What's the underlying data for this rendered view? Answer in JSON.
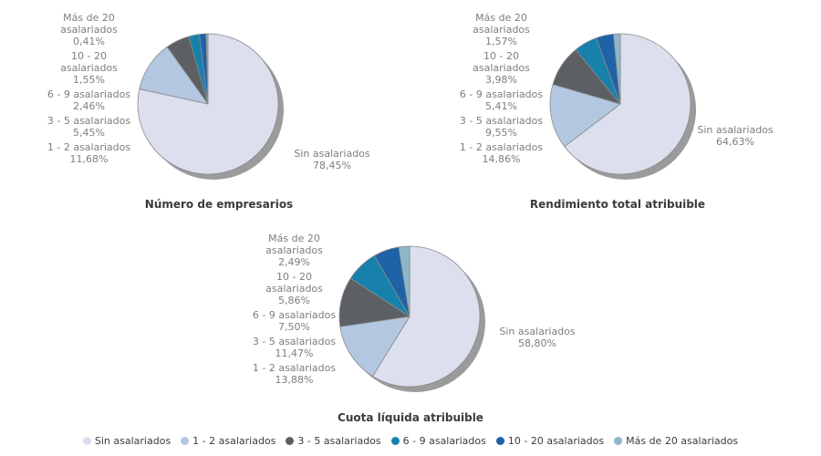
{
  "page": {
    "background_color": "#ffffff",
    "label_text_color": "#7e7e7e",
    "title_text_color": "#3b3b3b",
    "pie_shadow_color": "#9b9b9b",
    "slice_stroke_color": "#8a8a8a"
  },
  "legend": {
    "position": "bottom-center",
    "items": [
      {
        "label": "Sin asalariados",
        "color": "#dbdfee"
      },
      {
        "label": "1 - 2 asalariados",
        "color": "#b3c7e1"
      },
      {
        "label": "3 - 5 asalariados",
        "color": "#5c6064"
      },
      {
        "label": "6 - 9 asalariados",
        "color": "#1781ab"
      },
      {
        "label": "10 - 20 asalariados",
        "color": "#2062a7"
      },
      {
        "label": "Más de 20 asalariados",
        "color": "#8cb7c9"
      }
    ]
  },
  "chart_data": [
    {
      "type": "pie",
      "title": "Número de empresarios",
      "start_angle_deg": 0,
      "direction": "clockwise",
      "slices": [
        {
          "label": "Sin asalariados",
          "label_lines": [
            "Sin asalariados"
          ],
          "value": 78.45,
          "percent_label": "78,45%",
          "color": "#dbdfee",
          "label_side": "right"
        },
        {
          "label": "1 - 2 asalariados",
          "label_lines": [
            "1 - 2 asalariados"
          ],
          "value": 11.68,
          "percent_label": "11,68%",
          "color": "#b3c7e1",
          "label_side": "left"
        },
        {
          "label": "3 - 5 asalariados",
          "label_lines": [
            "3 - 5 asalariados"
          ],
          "value": 5.45,
          "percent_label": "5,45%",
          "color": "#5c6064",
          "label_side": "left"
        },
        {
          "label": "6 - 9 asalariados",
          "label_lines": [
            "6 - 9 asalariados"
          ],
          "value": 2.46,
          "percent_label": "2,46%",
          "color": "#1781ab",
          "label_side": "left"
        },
        {
          "label": "10 - 20 asalariados",
          "label_lines": [
            "10 - 20",
            "asalariados"
          ],
          "value": 1.55,
          "percent_label": "1,55%",
          "color": "#2062a7",
          "label_side": "left"
        },
        {
          "label": "Más de 20 asalariados",
          "label_lines": [
            "Más de 20",
            "asalariados"
          ],
          "value": 0.41,
          "percent_label": "0,41%",
          "color": "#8cb7c9",
          "label_side": "left"
        }
      ]
    },
    {
      "type": "pie",
      "title": "Rendimiento total atribuible",
      "start_angle_deg": 0,
      "direction": "clockwise",
      "slices": [
        {
          "label": "Sin asalariados",
          "label_lines": [
            "Sin asalariados"
          ],
          "value": 64.63,
          "percent_label": "64,63%",
          "color": "#dbdfee",
          "label_side": "right"
        },
        {
          "label": "1 - 2 asalariados",
          "label_lines": [
            "1 - 2 asalariados"
          ],
          "value": 14.86,
          "percent_label": "14,86%",
          "color": "#b3c7e1",
          "label_side": "left"
        },
        {
          "label": "3 - 5 asalariados",
          "label_lines": [
            "3 - 5 asalariados"
          ],
          "value": 9.55,
          "percent_label": "9,55%",
          "color": "#5c6064",
          "label_side": "left"
        },
        {
          "label": "6 - 9 asalariados",
          "label_lines": [
            "6 - 9 asalariados"
          ],
          "value": 5.41,
          "percent_label": "5,41%",
          "color": "#1781ab",
          "label_side": "left"
        },
        {
          "label": "10 - 20 asalariados",
          "label_lines": [
            "10 - 20",
            "asalariados"
          ],
          "value": 3.98,
          "percent_label": "3,98%",
          "color": "#2062a7",
          "label_side": "left"
        },
        {
          "label": "Más de 20 asalariados",
          "label_lines": [
            "Más de 20",
            "asalariados"
          ],
          "value": 1.57,
          "percent_label": "1,57%",
          "color": "#8cb7c9",
          "label_side": "left"
        }
      ]
    },
    {
      "type": "pie",
      "title": "Cuota líquida atribuible",
      "start_angle_deg": 0,
      "direction": "clockwise",
      "slices": [
        {
          "label": "Sin asalariados",
          "label_lines": [
            "Sin asalariados"
          ],
          "value": 58.8,
          "percent_label": "58,80%",
          "color": "#dbdfee",
          "label_side": "right"
        },
        {
          "label": "1 - 2 asalariados",
          "label_lines": [
            "1 - 2 asalariados"
          ],
          "value": 13.88,
          "percent_label": "13,88%",
          "color": "#b3c7e1",
          "label_side": "left"
        },
        {
          "label": "3 - 5 asalariados",
          "label_lines": [
            "3 - 5 asalariados"
          ],
          "value": 11.47,
          "percent_label": "11,47%",
          "color": "#5c6064",
          "label_side": "left"
        },
        {
          "label": "6 - 9 asalariados",
          "label_lines": [
            "6 - 9 asalariados"
          ],
          "value": 7.5,
          "percent_label": "7,50%",
          "color": "#1781ab",
          "label_side": "left"
        },
        {
          "label": "10 - 20 asalariados",
          "label_lines": [
            "10 - 20",
            "asalariados"
          ],
          "value": 5.86,
          "percent_label": "5,86%",
          "color": "#2062a7",
          "label_side": "left"
        },
        {
          "label": "Más de 20 asalariados",
          "label_lines": [
            "Más de 20",
            "asalariados"
          ],
          "value": 2.49,
          "percent_label": "2,49%",
          "color": "#8cb7c9",
          "label_side": "left"
        }
      ]
    }
  ]
}
